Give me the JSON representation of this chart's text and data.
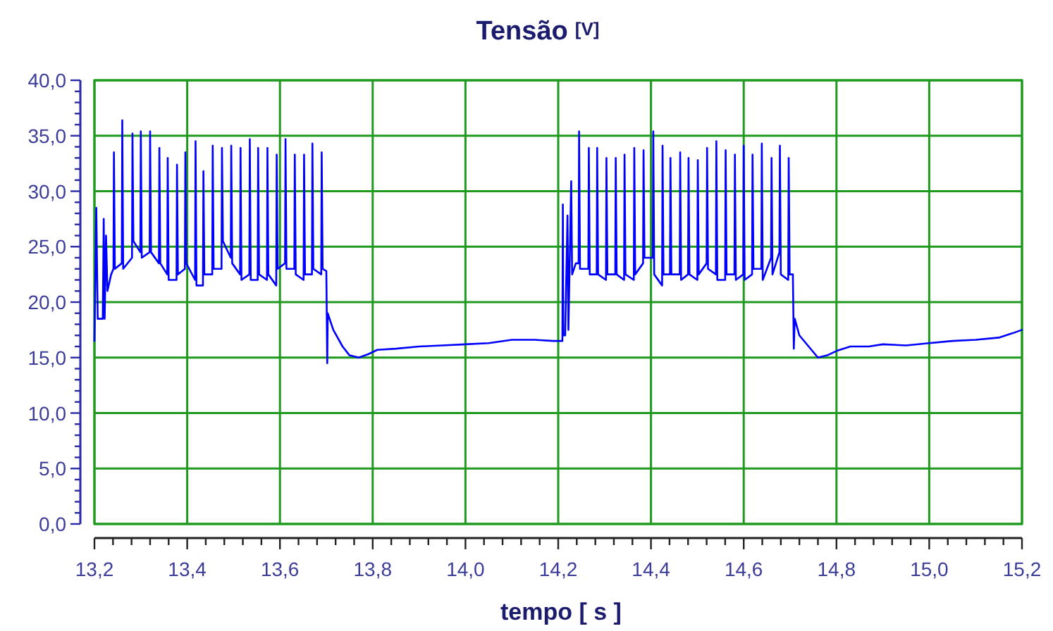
{
  "chart_data": {
    "type": "line",
    "title": "Tensão",
    "ylabel": "[V]",
    "xlabel": "tempo [ s ]",
    "xlim": [
      13.2,
      15.2
    ],
    "ylim": [
      0,
      40
    ],
    "grid": true,
    "marker": "none",
    "line_style": "solid",
    "xticks": [
      {
        "value": 13.2,
        "label": "13,2"
      },
      {
        "value": 13.24,
        "label": null
      },
      {
        "value": 13.28,
        "label": null
      },
      {
        "value": 13.32,
        "label": null
      },
      {
        "value": 13.36,
        "label": null
      },
      {
        "value": 13.4,
        "label": "13,4"
      },
      {
        "value": 13.44,
        "label": null
      },
      {
        "value": 13.48,
        "label": null
      },
      {
        "value": 13.52,
        "label": null
      },
      {
        "value": 13.56,
        "label": null
      },
      {
        "value": 13.6,
        "label": "13,6"
      },
      {
        "value": 13.64,
        "label": null
      },
      {
        "value": 13.68,
        "label": null
      },
      {
        "value": 13.72,
        "label": null
      },
      {
        "value": 13.76,
        "label": null
      },
      {
        "value": 13.8,
        "label": "13,8"
      },
      {
        "value": 13.84,
        "label": null
      },
      {
        "value": 13.88,
        "label": null
      },
      {
        "value": 13.92,
        "label": null
      },
      {
        "value": 13.96,
        "label": null
      },
      {
        "value": 14.0,
        "label": "14,0"
      },
      {
        "value": 14.04,
        "label": null
      },
      {
        "value": 14.08,
        "label": null
      },
      {
        "value": 14.12,
        "label": null
      },
      {
        "value": 14.16,
        "label": null
      },
      {
        "value": 14.2,
        "label": "14,2"
      },
      {
        "value": 14.24,
        "label": null
      },
      {
        "value": 14.28,
        "label": null
      },
      {
        "value": 14.32,
        "label": null
      },
      {
        "value": 14.36,
        "label": null
      },
      {
        "value": 14.4,
        "label": "14,4"
      },
      {
        "value": 14.44,
        "label": null
      },
      {
        "value": 14.48,
        "label": null
      },
      {
        "value": 14.52,
        "label": null
      },
      {
        "value": 14.56,
        "label": null
      },
      {
        "value": 14.6,
        "label": "14,6"
      },
      {
        "value": 14.64,
        "label": null
      },
      {
        "value": 14.68,
        "label": null
      },
      {
        "value": 14.72,
        "label": null
      },
      {
        "value": 14.76,
        "label": null
      },
      {
        "value": 14.8,
        "label": "14,8"
      },
      {
        "value": 14.84,
        "label": null
      },
      {
        "value": 14.88,
        "label": null
      },
      {
        "value": 14.92,
        "label": null
      },
      {
        "value": 14.96,
        "label": null
      },
      {
        "value": 15.0,
        "label": "15,0"
      },
      {
        "value": 15.04,
        "label": null
      },
      {
        "value": 15.08,
        "label": null
      },
      {
        "value": 15.12,
        "label": null
      },
      {
        "value": 15.16,
        "label": null
      },
      {
        "value": 15.2,
        "label": "15,2"
      }
    ],
    "yticks": [
      {
        "value": 0,
        "label": "0,0"
      },
      {
        "value": 1,
        "label": null
      },
      {
        "value": 2,
        "label": null
      },
      {
        "value": 3,
        "label": null
      },
      {
        "value": 4,
        "label": null
      },
      {
        "value": 5,
        "label": "5,0"
      },
      {
        "value": 6,
        "label": null
      },
      {
        "value": 7,
        "label": null
      },
      {
        "value": 8,
        "label": null
      },
      {
        "value": 9,
        "label": null
      },
      {
        "value": 10,
        "label": "10,0"
      },
      {
        "value": 11,
        "label": null
      },
      {
        "value": 12,
        "label": null
      },
      {
        "value": 13,
        "label": null
      },
      {
        "value": 14,
        "label": null
      },
      {
        "value": 15,
        "label": "15,0"
      },
      {
        "value": 16,
        "label": null
      },
      {
        "value": 17,
        "label": null
      },
      {
        "value": 18,
        "label": null
      },
      {
        "value": 19,
        "label": null
      },
      {
        "value": 20,
        "label": "20,0"
      },
      {
        "value": 21,
        "label": null
      },
      {
        "value": 22,
        "label": null
      },
      {
        "value": 23,
        "label": null
      },
      {
        "value": 24,
        "label": null
      },
      {
        "value": 25,
        "label": "25,0"
      },
      {
        "value": 26,
        "label": null
      },
      {
        "value": 27,
        "label": null
      },
      {
        "value": 28,
        "label": null
      },
      {
        "value": 29,
        "label": null
      },
      {
        "value": 30,
        "label": "30,0"
      },
      {
        "value": 31,
        "label": null
      },
      {
        "value": 32,
        "label": null
      },
      {
        "value": 33,
        "label": null
      },
      {
        "value": 34,
        "label": null
      },
      {
        "value": 35,
        "label": "35,0"
      },
      {
        "value": 36,
        "label": null
      },
      {
        "value": 37,
        "label": null
      },
      {
        "value": 38,
        "label": null
      },
      {
        "value": 39,
        "label": null
      },
      {
        "value": 40,
        "label": "40,0"
      }
    ],
    "x": [
      13.2,
      13.204,
      13.207,
      13.218,
      13.22,
      13.222,
      13.225,
      13.228,
      13.236,
      13.241,
      13.242,
      13.244,
      13.259,
      13.26,
      13.262,
      13.281,
      13.282,
      13.284,
      13.299,
      13.3,
      13.302,
      13.319,
      13.32,
      13.322,
      13.339,
      13.34,
      13.342,
      13.357,
      13.358,
      13.36,
      13.377,
      13.378,
      13.38,
      13.395,
      13.396,
      13.398,
      13.417,
      13.418,
      13.42,
      13.434,
      13.435,
      13.437,
      13.454,
      13.455,
      13.457,
      13.474,
      13.475,
      13.477,
      13.494,
      13.495,
      13.497,
      13.514,
      13.515,
      13.517,
      13.534,
      13.535,
      13.537,
      13.552,
      13.553,
      13.555,
      13.572,
      13.573,
      13.575,
      13.592,
      13.593,
      13.595,
      13.611,
      13.612,
      13.614,
      13.631,
      13.632,
      13.634,
      13.651,
      13.652,
      13.654,
      13.669,
      13.67,
      13.672,
      13.689,
      13.69,
      13.692,
      13.7,
      13.702,
      13.703,
      13.715,
      13.735,
      13.75,
      13.77,
      13.79,
      13.81,
      13.85,
      13.9,
      13.95,
      14.0,
      14.05,
      14.1,
      14.15,
      14.19,
      14.209,
      14.21,
      14.211,
      14.215,
      14.22,
      14.222,
      14.228,
      14.23,
      14.238,
      14.244,
      14.245,
      14.247,
      14.265,
      14.266,
      14.268,
      14.283,
      14.284,
      14.286,
      14.303,
      14.304,
      14.306,
      14.323,
      14.324,
      14.326,
      14.342,
      14.343,
      14.345,
      14.363,
      14.364,
      14.366,
      14.383,
      14.384,
      14.386,
      14.404,
      14.405,
      14.407,
      14.424,
      14.425,
      14.427,
      14.441,
      14.442,
      14.444,
      14.462,
      14.463,
      14.465,
      14.48,
      14.481,
      14.483,
      14.5,
      14.501,
      14.503,
      14.52,
      14.521,
      14.523,
      14.54,
      14.541,
      14.543,
      14.56,
      14.561,
      14.563,
      14.58,
      14.581,
      14.583,
      14.599,
      14.6,
      14.602,
      14.618,
      14.619,
      14.621,
      14.638,
      14.639,
      14.641,
      14.659,
      14.66,
      14.662,
      14.677,
      14.678,
      14.68,
      14.696,
      14.697,
      14.699,
      14.706,
      14.708,
      14.71,
      14.72,
      14.74,
      14.76,
      14.78,
      14.8,
      14.83,
      14.87,
      14.9,
      14.95,
      15.0,
      15.05,
      15.1,
      15.15,
      15.18,
      15.2
    ],
    "series": [
      {
        "color": "#0000ff",
        "values": [
          16.5,
          28.5,
          18.5,
          18.5,
          27.5,
          18.5,
          26.0,
          21.0,
          22.5,
          23.0,
          33.5,
          23.0,
          23.5,
          36.4,
          23.0,
          24.0,
          35.2,
          25.5,
          24.5,
          35.4,
          24.0,
          24.5,
          35.4,
          24.5,
          23.5,
          33.9,
          23.5,
          22.5,
          33.0,
          22.0,
          22.0,
          32.4,
          22.5,
          23.0,
          33.5,
          23.5,
          22.0,
          34.5,
          21.5,
          21.5,
          31.8,
          22.5,
          22.5,
          34.1,
          23.0,
          23.0,
          33.9,
          25.5,
          24.0,
          34.1,
          23.5,
          22.5,
          33.9,
          22.0,
          22.5,
          34.7,
          22.0,
          22.0,
          33.9,
          22.5,
          22.0,
          33.9,
          22.5,
          21.5,
          33.3,
          23.0,
          23.5,
          34.7,
          23.0,
          23.0,
          33.3,
          22.5,
          22.0,
          33.3,
          22.5,
          22.5,
          34.3,
          23.0,
          22.5,
          33.5,
          23.0,
          22.8,
          14.5,
          19.0,
          17.5,
          16.0,
          15.2,
          15.0,
          15.3,
          15.7,
          15.8,
          16.0,
          16.1,
          16.2,
          16.3,
          16.6,
          16.6,
          16.5,
          16.5,
          28.8,
          17.0,
          17.0,
          27.8,
          17.5,
          30.9,
          22.5,
          23.5,
          23.5,
          35.4,
          23.0,
          23.0,
          33.9,
          22.5,
          22.5,
          33.9,
          22.5,
          22.0,
          33.0,
          22.5,
          22.5,
          33.0,
          22.5,
          22.0,
          33.3,
          22.5,
          22.0,
          33.9,
          22.5,
          23.5,
          33.7,
          24.0,
          24.0,
          35.4,
          22.5,
          21.5,
          34.1,
          22.5,
          22.5,
          33.0,
          22.5,
          22.5,
          33.5,
          22.0,
          22.5,
          33.0,
          22.5,
          22.0,
          32.8,
          22.5,
          23.5,
          33.9,
          23.0,
          22.5,
          34.5,
          22.0,
          22.0,
          33.7,
          22.5,
          22.5,
          33.3,
          22.0,
          22.5,
          34.1,
          22.0,
          22.5,
          33.3,
          23.0,
          23.0,
          34.3,
          22.0,
          24.0,
          33.0,
          22.5,
          24.5,
          34.1,
          22.5,
          22.0,
          33.0,
          22.5,
          22.5,
          15.8,
          18.5,
          17.0,
          16.0,
          15.0,
          15.2,
          15.6,
          16.0,
          16.0,
          16.2,
          16.1,
          16.3,
          16.5,
          16.6,
          16.8,
          17.2,
          17.5
        ]
      }
    ]
  }
}
